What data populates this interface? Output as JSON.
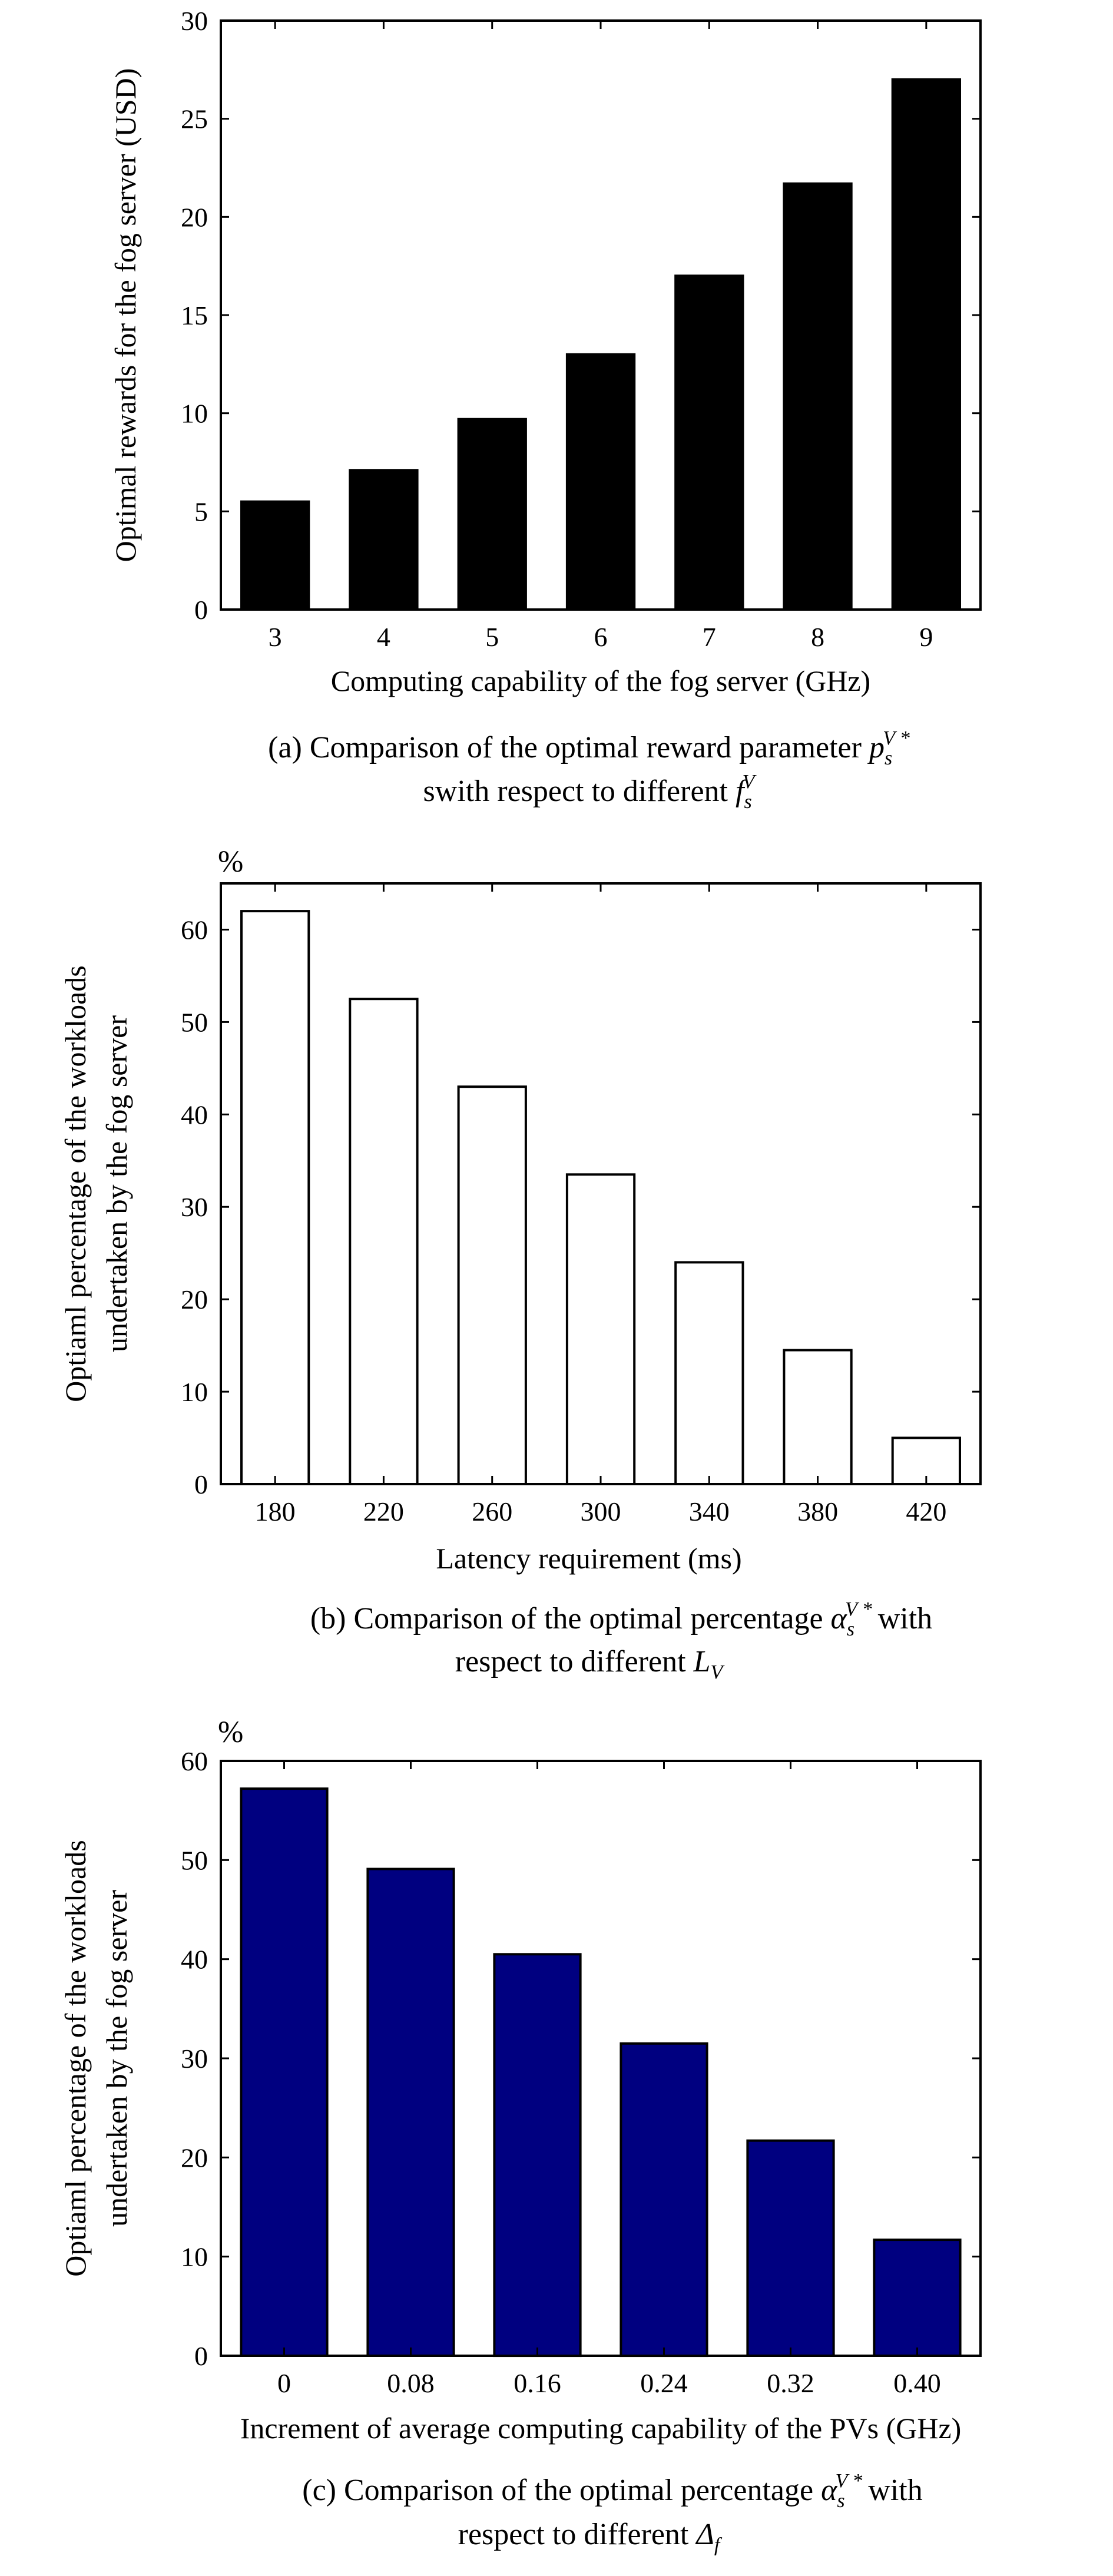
{
  "colors": {
    "panel_a_bar": "#000000",
    "panel_b_bar": "#ffffff",
    "panel_c_bar": "#000080",
    "axis": "#000000"
  },
  "panels": {
    "a": {
      "ylabel": "Optimal rewards for the fog server (USD)",
      "xlabel": "Computing capability of the fog server (GHz)",
      "unit": "",
      "caption_line1": "(a) Comparison of the optimal reward parameter",
      "caption_line2": "swith respect to different"
    },
    "b": {
      "ylabel_line1": "Optiaml percentage of the workloads",
      "ylabel_line2": "undertaken by the fog server",
      "xlabel": "Latency requirement  (ms)",
      "unit": "%",
      "caption_line1": "(b) Comparison of the optimal percentage",
      "caption_line1_tail": "with",
      "caption_line2": "respect to different"
    },
    "c": {
      "ylabel_line1": "Optiaml percentage of the workloads",
      "ylabel_line2": "undertaken by the fog server",
      "xlabel": "Increment of average computing capability of the PVs  (GHz)",
      "unit": "%",
      "caption_line1": "(c) Comparison of the optimal percentage",
      "caption_line1_tail": "with",
      "caption_line2": "respect to different"
    }
  },
  "chart_data": [
    {
      "type": "bar",
      "categories": [
        "3",
        "4",
        "5",
        "6",
        "7",
        "8",
        "9"
      ],
      "values": [
        5.5,
        7.1,
        9.7,
        13.0,
        17.0,
        21.7,
        27.0
      ],
      "xlabel": "Computing capability of the fog server (GHz)",
      "ylabel": "Optimal rewards for the fog server (USD)",
      "ylim": [
        0,
        30
      ],
      "yticks": [
        0,
        5,
        10,
        15,
        20,
        25,
        30
      ],
      "bar_color": "#000000",
      "grid": false
    },
    {
      "type": "bar",
      "categories": [
        "180",
        "220",
        "260",
        "300",
        "340",
        "380",
        "420"
      ],
      "values": [
        62,
        52.5,
        43,
        33.5,
        24,
        14.5,
        5
      ],
      "xlabel": "Latency requirement  (ms)",
      "ylabel": "Optiaml percentage of the workloads undertaken by the fog server",
      "ylim": [
        0,
        65
      ],
      "yticks": [
        0,
        10,
        20,
        30,
        40,
        50,
        60
      ],
      "bar_color": "#ffffff",
      "grid": false
    },
    {
      "type": "bar",
      "categories": [
        "0",
        "0.08",
        "0.16",
        "0.24",
        "0.32",
        "0.40"
      ],
      "values": [
        57.2,
        49.1,
        40.5,
        31.5,
        21.7,
        11.7
      ],
      "xlabel": "Increment of average computing capability of the PVs  (GHz)",
      "ylabel": "Optiaml percentage of the workloads undertaken by the fog server",
      "ylim": [
        0,
        60
      ],
      "yticks": [
        0,
        10,
        20,
        30,
        40,
        50,
        60
      ],
      "bar_color": "#000080",
      "grid": false
    }
  ]
}
